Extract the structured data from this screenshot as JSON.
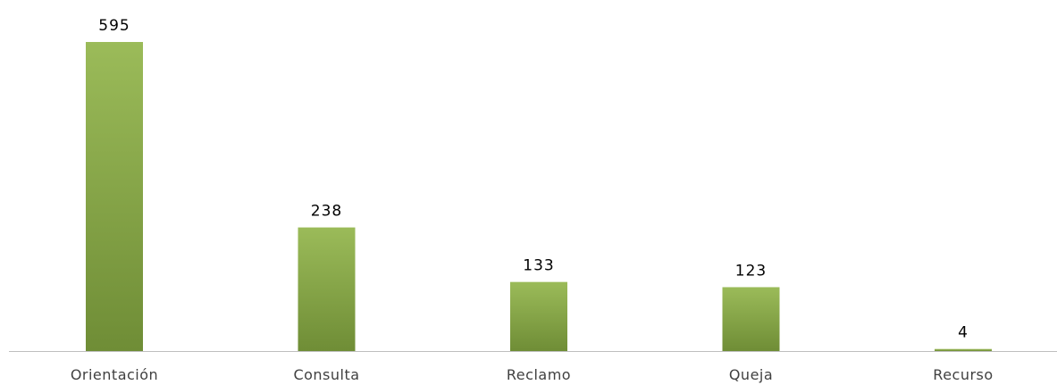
{
  "chart_data": {
    "type": "bar",
    "categories": [
      "Orientación",
      "Consulta",
      "Reclamo",
      "Queja",
      "Recurso"
    ],
    "values": [
      595,
      238,
      133,
      123,
      4
    ],
    "data_labels": [
      "595",
      "238",
      "133",
      "123",
      "4"
    ],
    "title": "",
    "xlabel": "",
    "ylabel": "",
    "ylim": [
      0,
      595
    ],
    "grid": false,
    "legend": "none",
    "colors": {
      "bar_top": "#9bbb59",
      "bar_bottom": "#6f8d36",
      "axis": "#bfbfbf"
    }
  }
}
